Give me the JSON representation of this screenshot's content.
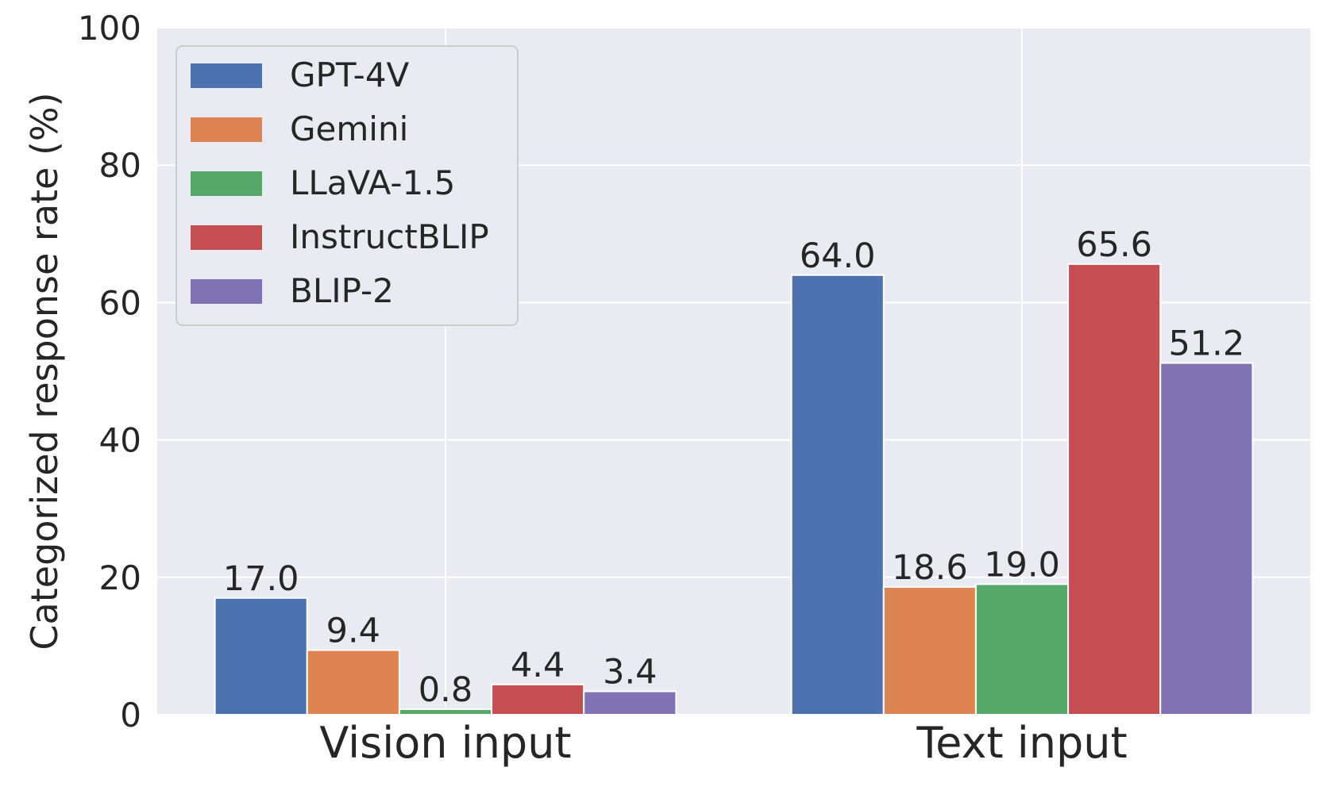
{
  "chart_data": {
    "type": "bar",
    "categories": [
      "Vision input",
      "Text input"
    ],
    "series": [
      {
        "name": "GPT-4V",
        "values": [
          17.0,
          64.0
        ],
        "labels": [
          "17.0",
          "64.0"
        ],
        "color": "#4c72b0"
      },
      {
        "name": "Gemini",
        "values": [
          9.4,
          18.6
        ],
        "labels": [
          "9.4",
          "18.6"
        ],
        "color": "#dd8452"
      },
      {
        "name": "LLaVA-1.5",
        "values": [
          0.8,
          19.0
        ],
        "labels": [
          "0.8",
          "19.0"
        ],
        "color": "#55a868"
      },
      {
        "name": "InstructBLIP",
        "values": [
          4.4,
          65.6
        ],
        "labels": [
          "4.4",
          "65.6"
        ],
        "color": "#c44e52"
      },
      {
        "name": "BLIP-2",
        "values": [
          3.4,
          51.2
        ],
        "labels": [
          "3.4",
          "51.2"
        ],
        "color": "#8172b3"
      }
    ],
    "title": "",
    "xlabel": "",
    "ylabel": "Categorized response rate (%)",
    "ylim": [
      0,
      100
    ],
    "yticks": [
      "0",
      "20",
      "40",
      "60",
      "80",
      "100"
    ],
    "grid": true,
    "legend_position": "top-left",
    "background": "#eaeaf2"
  }
}
